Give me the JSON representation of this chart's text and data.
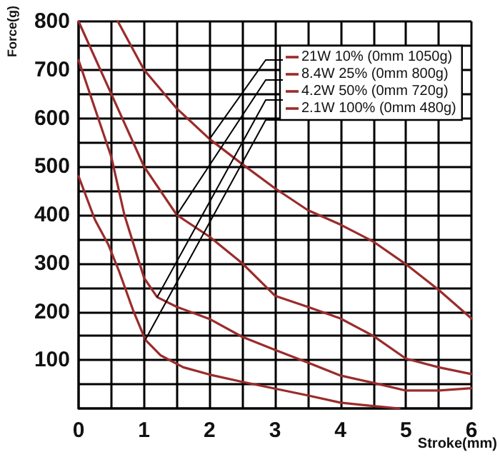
{
  "chart_data": {
    "type": "line",
    "xlabel": "Stroke(mm)",
    "ylabel": "Force(g)",
    "xlim": [
      0,
      6
    ],
    "xticks": [
      0,
      {
        "value": 0.5,
        "label": null
      },
      1,
      {
        "value": 1.5,
        "label": null
      },
      2,
      {
        "value": 2.5,
        "label": null
      },
      3,
      {
        "value": 3.5,
        "label": null
      },
      4,
      {
        "value": 4.5,
        "label": null
      },
      5,
      {
        "value": 5.5,
        "label": null
      },
      6
    ],
    "ylim": [
      0,
      800
    ],
    "yticks": [
      {
        "value": 0,
        "label": null
      },
      {
        "value": 50,
        "label": null
      },
      100,
      {
        "value": 150,
        "label": null
      },
      200,
      {
        "value": 250,
        "label": null
      },
      300,
      {
        "value": 350,
        "label": null
      },
      400,
      {
        "value": 450,
        "label": null
      },
      500,
      {
        "value": 550,
        "label": null
      },
      600,
      {
        "value": 650,
        "label": null
      },
      700,
      {
        "value": 750,
        "label": null
      },
      800
    ],
    "grid": true,
    "legend": "top right",
    "marker": "none",
    "line_style": "solid",
    "series": [
      {
        "name": "21W 10% (0mm 1050g)",
        "color": "#9b2b2b",
        "x": [
          0.6,
          1,
          1.5,
          2,
          2.5,
          3,
          3.5,
          4,
          4.5,
          5,
          5.5,
          6
        ],
        "values": [
          800,
          700,
          620,
          557,
          505,
          455,
          410,
          380,
          345,
          298,
          245,
          186
        ]
      },
      {
        "name": "8.4W 25% (0mm 800g)",
        "color": "#9b2b2b",
        "x": [
          0,
          0.5,
          1,
          1.5,
          2,
          2.5,
          3,
          3.5,
          4,
          4.5,
          5,
          5.5,
          6
        ],
        "values": [
          800,
          650,
          500,
          400,
          355,
          300,
          233,
          210,
          186,
          150,
          103,
          85,
          71
        ]
      },
      {
        "name": "4.2W 50% (0mm 720g)",
        "color": "#9b2b2b",
        "x": [
          0,
          0.5,
          0.7,
          1,
          1.2,
          1.5,
          2,
          2.5,
          3,
          3.5,
          4,
          4.5,
          5,
          5.5,
          6
        ],
        "values": [
          720,
          520,
          400,
          270,
          230,
          210,
          185,
          148,
          121,
          95,
          68,
          53,
          37,
          37,
          42
        ]
      },
      {
        "name": "2.1W 100% (0mm 480g)",
        "color": "#9b2b2b",
        "x": [
          0,
          0.25,
          0.45,
          0.62,
          0.83,
          1.02,
          1.25,
          1.6,
          2,
          2.5,
          3,
          3.5,
          4,
          4.5,
          4.9
        ],
        "values": [
          480,
          390,
          340,
          283,
          204,
          142,
          110,
          85,
          70,
          55,
          41,
          27,
          12,
          5,
          0
        ]
      }
    ]
  }
}
